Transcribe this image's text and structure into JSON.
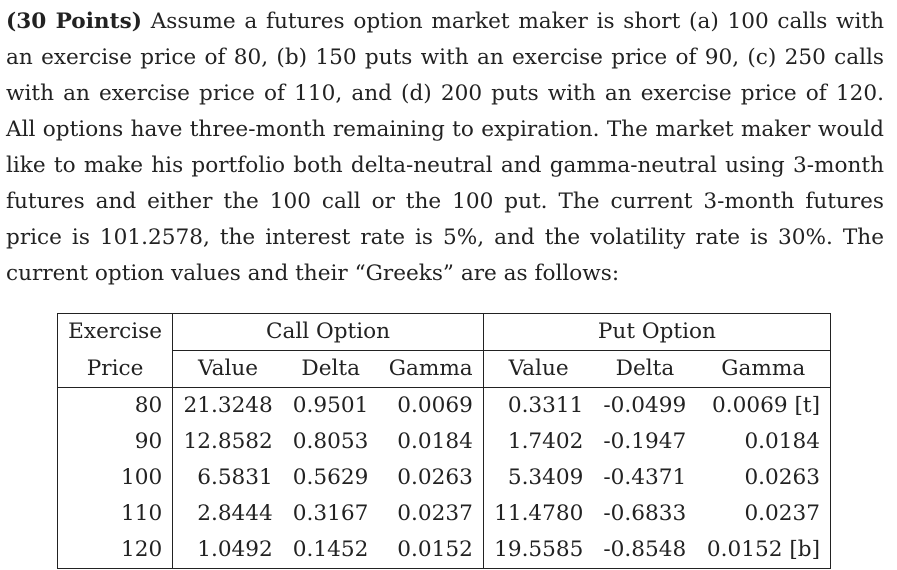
{
  "problem": {
    "points_label": "(30 Points)",
    "text": " Assume a futures option market maker is short (a) 100 calls with an exercise price of 80, (b) 150 puts with an exercise price of 90, (c) 250 calls with an exercise price of 110, and (d) 200 puts with an exercise price of 120. All options have three-month remaining to expiration. The market maker would like to make his portfolio both delta-neutral and gamma-neutral using 3-month futures and either the 100 call or the 100 put. The current 3-month futures price is 101.2578, the interest rate is 5%, and the volatility rate is 30%. The current option values and their “Greeks” are as follows:"
  },
  "table": {
    "header": {
      "exercise_top": "Exercise",
      "exercise_bottom": "Price",
      "call_group": "Call Option",
      "put_group": "Put Option",
      "call_cols": [
        "Value",
        "Delta",
        "Gamma"
      ],
      "put_cols": [
        "Value",
        "Delta",
        "Gamma"
      ]
    },
    "rows": [
      {
        "price": "80",
        "call_value": "21.3248",
        "call_delta": "0.9501",
        "call_gamma": "0.0069",
        "put_value": "0.3311",
        "put_delta": "-0.0499",
        "put_gamma": "0.0069 [t]"
      },
      {
        "price": "90",
        "call_value": "12.8582",
        "call_delta": "0.8053",
        "call_gamma": "0.0184",
        "put_value": "1.7402",
        "put_delta": "-0.1947",
        "put_gamma": "0.0184"
      },
      {
        "price": "100",
        "call_value": "6.5831",
        "call_delta": "0.5629",
        "call_gamma": "0.0263",
        "put_value": "5.3409",
        "put_delta": "-0.4371",
        "put_gamma": "0.0263"
      },
      {
        "price": "110",
        "call_value": "2.8444",
        "call_delta": "0.3167",
        "call_gamma": "0.0237",
        "put_value": "11.4780",
        "put_delta": "-0.6833",
        "put_gamma": "0.0237"
      },
      {
        "price": "120",
        "call_value": "1.0492",
        "call_delta": "0.1452",
        "call_gamma": "0.0152",
        "put_value": "19.5585",
        "put_delta": "-0.8548",
        "put_gamma": "0.0152 [b]"
      }
    ]
  }
}
